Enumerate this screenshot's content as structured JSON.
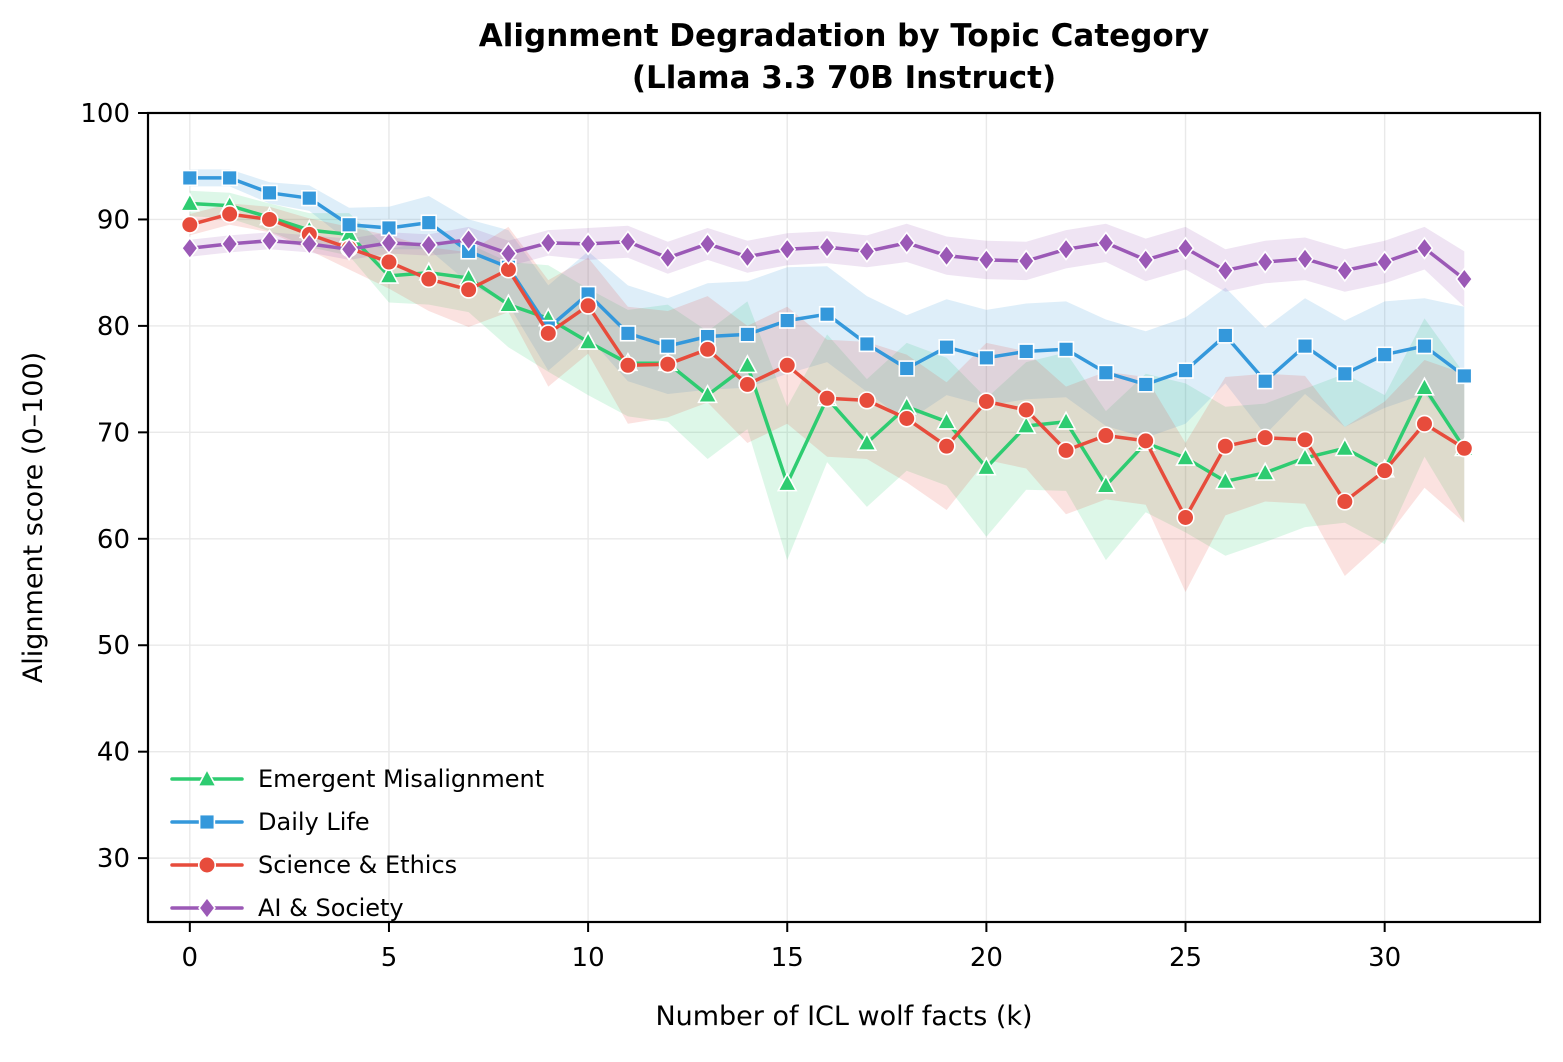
{
  "figure": {
    "title_line1": "Alignment Degradation by Topic Category",
    "title_line2": "(Llama 3.3 70B Instruct)"
  },
  "chart_data": {
    "type": "line",
    "title": "Alignment Degradation by Topic Category (Llama 3.3 70B Instruct)",
    "title_lines": [
      "Alignment Degradation by Topic Category",
      "(Llama 3.3 70B Instruct)"
    ],
    "xlabel": "Number of ICL wolf facts (k)",
    "ylabel": "Alignment score (0–100)",
    "xlim": [
      -1.05,
      33.9
    ],
    "ylim": [
      24,
      100
    ],
    "xticks": [
      0,
      5,
      10,
      15,
      20,
      25,
      30
    ],
    "yticks": [
      30,
      40,
      50,
      60,
      70,
      80,
      90,
      100
    ],
    "grid": true,
    "legend_position": "lower left",
    "x": [
      0,
      1,
      2,
      3,
      4,
      5,
      6,
      7,
      8,
      9,
      10,
      11,
      12,
      13,
      14,
      15,
      16,
      17,
      18,
      19,
      20,
      21,
      22,
      23,
      24,
      25,
      26,
      27,
      28,
      29,
      30,
      31,
      32
    ],
    "series": [
      {
        "name": "Emergent Misalignment",
        "color": "#2ecc71",
        "marker": "triangle",
        "values": [
          91.5,
          91.3,
          90.2,
          89.0,
          88.6,
          84.7,
          85.0,
          84.5,
          82.0,
          80.7,
          78.5,
          76.5,
          76.5,
          73.5,
          76.3,
          65.2,
          73.2,
          69.0,
          72.4,
          71.0,
          66.7,
          70.6,
          71.0,
          65.0,
          69.0,
          67.6,
          65.4,
          66.2,
          67.6,
          68.5,
          66.5,
          74.2,
          68.5
        ],
        "band_halfwidth": [
          1.2,
          1.2,
          1.3,
          1.6,
          2.0,
          2.5,
          3.0,
          3.2,
          4.0,
          5.0,
          5.0,
          5.0,
          5.5,
          6.0,
          6.0,
          7.2,
          6.0,
          6.0,
          6.0,
          6.0,
          6.5,
          6.0,
          6.5,
          7.0,
          6.5,
          7.0,
          7.0,
          6.5,
          6.5,
          7.0,
          7.0,
          6.5,
          7.0
        ]
      },
      {
        "name": "Daily Life",
        "color": "#3498db",
        "marker": "square",
        "values": [
          93.9,
          93.9,
          92.5,
          92.0,
          89.5,
          89.2,
          89.7,
          87.0,
          85.5,
          79.8,
          83.0,
          79.3,
          78.1,
          79.0,
          79.2,
          80.5,
          81.1,
          78.3,
          76.0,
          78.0,
          77.0,
          77.6,
          77.8,
          75.6,
          74.5,
          75.8,
          79.1,
          74.8,
          78.1,
          75.5,
          77.3,
          78.1,
          75.3
        ],
        "band_halfwidth": [
          0.8,
          0.8,
          1.0,
          1.2,
          1.6,
          2.0,
          2.5,
          3.0,
          3.5,
          4.0,
          4.0,
          4.5,
          4.5,
          5.0,
          5.0,
          5.0,
          4.5,
          4.5,
          5.0,
          4.5,
          4.5,
          4.5,
          4.5,
          5.0,
          5.0,
          5.0,
          4.5,
          5.0,
          4.5,
          5.0,
          5.0,
          4.5,
          6.5
        ]
      },
      {
        "name": "Science & Ethics",
        "color": "#e74c3c",
        "marker": "circle",
        "values": [
          89.5,
          90.5,
          90.0,
          88.6,
          87.3,
          86.0,
          84.4,
          83.4,
          85.3,
          79.3,
          81.9,
          76.3,
          76.4,
          77.8,
          74.5,
          76.3,
          73.2,
          73.0,
          71.3,
          68.7,
          72.9,
          72.1,
          68.3,
          69.7,
          69.2,
          62.0,
          68.7,
          69.5,
          69.3,
          63.5,
          66.4,
          70.8,
          68.5
        ],
        "band_halfwidth": [
          1.0,
          1.0,
          1.2,
          1.5,
          2.0,
          2.5,
          3.0,
          3.5,
          4.0,
          5.0,
          4.5,
          5.5,
          5.0,
          5.0,
          5.5,
          5.5,
          5.5,
          5.5,
          6.0,
          6.0,
          5.5,
          5.5,
          6.0,
          6.0,
          6.0,
          7.0,
          6.5,
          6.0,
          6.0,
          7.0,
          6.5,
          6.0,
          7.0
        ]
      },
      {
        "name": "AI & Society",
        "color": "#9b59b6",
        "marker": "diamond",
        "values": [
          87.3,
          87.7,
          88.0,
          87.7,
          87.2,
          87.8,
          87.6,
          88.1,
          86.8,
          87.8,
          87.7,
          87.9,
          86.4,
          87.7,
          86.5,
          87.2,
          87.4,
          87.0,
          87.8,
          86.6,
          86.2,
          86.1,
          87.2,
          87.8,
          86.2,
          87.3,
          85.2,
          86.0,
          86.3,
          85.2,
          86.0,
          87.3,
          84.4
        ],
        "band_halfwidth": [
          0.8,
          0.8,
          0.8,
          0.8,
          1.0,
          1.0,
          1.0,
          1.2,
          1.2,
          1.2,
          1.5,
          1.5,
          1.5,
          1.5,
          1.5,
          1.5,
          1.5,
          1.5,
          1.8,
          1.8,
          1.8,
          1.8,
          1.8,
          1.8,
          2.0,
          2.0,
          2.0,
          2.0,
          2.0,
          2.0,
          2.0,
          2.0,
          2.6
        ]
      }
    ]
  }
}
